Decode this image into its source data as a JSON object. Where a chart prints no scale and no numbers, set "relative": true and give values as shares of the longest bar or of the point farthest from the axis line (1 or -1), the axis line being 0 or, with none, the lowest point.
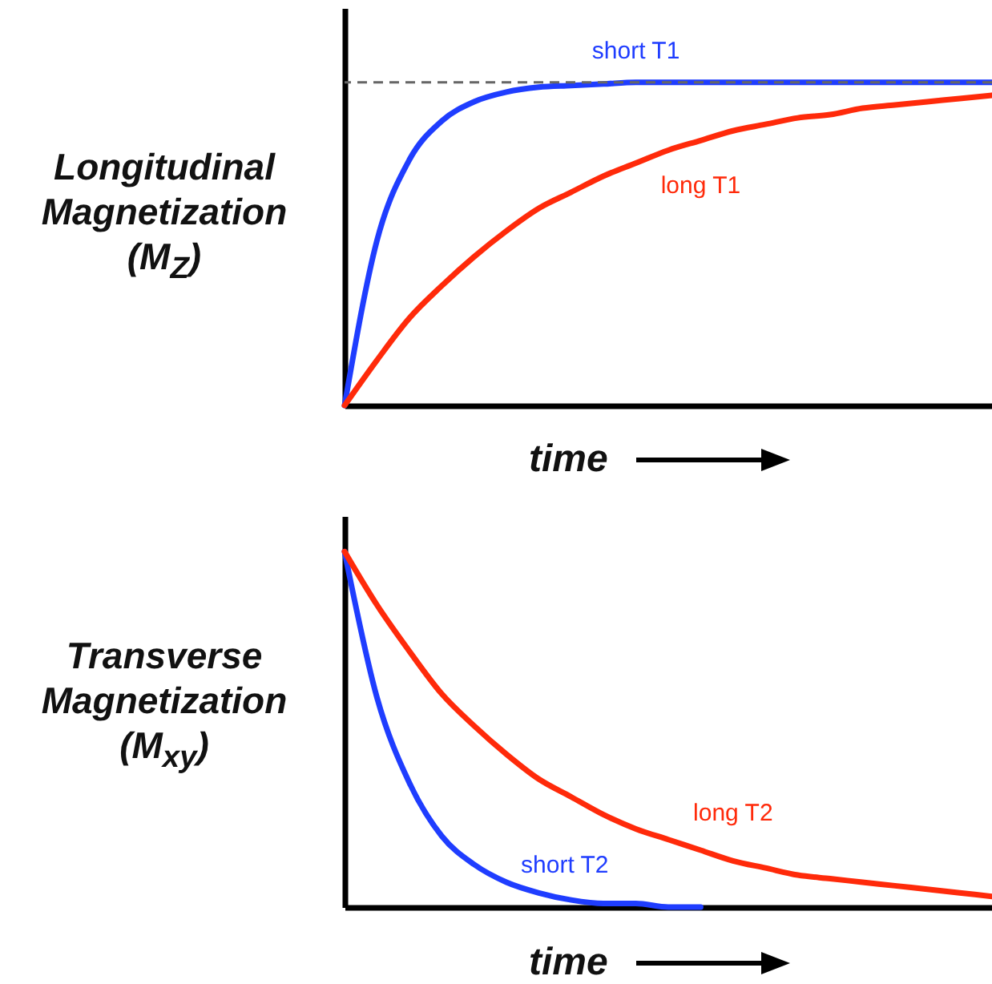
{
  "chart_data": [
    {
      "type": "line",
      "relative": true,
      "ylabel": "Longitudinal\nMagnetization\n(M$_{Z}$)",
      "xlabel": "time",
      "tick_labels": false,
      "grid": false,
      "categories": [
        null,
        null,
        null,
        null,
        null,
        null,
        null,
        null,
        null,
        null,
        null,
        null,
        null,
        null,
        null,
        null,
        null,
        null,
        null,
        null,
        null
      ],
      "series": [
        {
          "name": "short T1",
          "color": "#1f3dff",
          "values": [
            0,
            0.51,
            0.76,
            0.88,
            0.94,
            0.97,
            0.985,
            0.99,
            0.995,
            1,
            1,
            1,
            1,
            1,
            1,
            1,
            1,
            1,
            1,
            1,
            1
          ]
        },
        {
          "name": "long T1",
          "color": "#ff2a0a",
          "values": [
            0,
            0.14,
            0.27,
            0.37,
            0.46,
            0.54,
            0.61,
            0.66,
            0.71,
            0.75,
            0.79,
            0.82,
            0.85,
            0.87,
            0.89,
            0.9,
            0.92,
            0.93,
            0.94,
            0.95,
            0.96
          ]
        }
      ],
      "ref_lines": [
        {
          "axis": "y",
          "value": 1,
          "color": "#666666",
          "line_style": "dashed"
        }
      ]
    },
    {
      "type": "line",
      "relative": true,
      "ylabel": "Transverse\nMagnetization\n(M$_{xy}$)",
      "xlabel": "time",
      "tick_labels": false,
      "grid": false,
      "categories": [
        null,
        null,
        null,
        null,
        null,
        null,
        null,
        null,
        null,
        null,
        null,
        null,
        null,
        null,
        null,
        null,
        null,
        null,
        null,
        null,
        null
      ],
      "series": [
        {
          "name": "short T2",
          "color": "#1f3dff",
          "values": [
            1,
            0.59,
            0.35,
            0.2,
            0.12,
            0.07,
            0.04,
            0.02,
            0.01,
            0.01,
            0,
            0,
            null,
            null,
            null,
            null,
            null,
            null,
            null,
            null,
            null
          ]
        },
        {
          "name": "long T2",
          "color": "#ff2a0a",
          "values": [
            1,
            0.85,
            0.72,
            0.6,
            0.51,
            0.43,
            0.36,
            0.31,
            0.26,
            0.22,
            0.19,
            0.16,
            0.13,
            0.11,
            0.09,
            0.08,
            0.07,
            0.06,
            0.05,
            0.04,
            0.03
          ]
        }
      ]
    }
  ]
}
